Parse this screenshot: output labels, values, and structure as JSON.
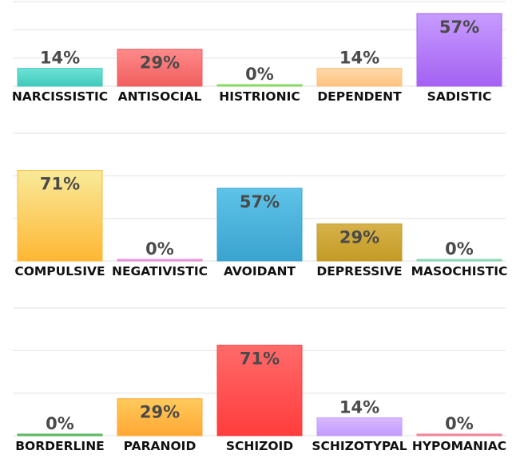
{
  "chart_data": [
    {
      "type": "bar",
      "categories": [
        "NARCISSISTIC",
        "ANTISOCIAL",
        "HISTRIONIC",
        "DEPENDENT",
        "SADISTIC"
      ],
      "values": [
        14,
        29,
        0,
        14,
        57
      ],
      "value_labels": [
        "14%",
        "29%",
        "0%",
        "14%",
        "57%"
      ],
      "colors": [
        [
          "#6fe3d6",
          "#3fc9bb"
        ],
        [
          "#ff8a8a",
          "#f05e5e"
        ],
        [
          "#aef08c",
          "#7ed65a"
        ],
        [
          "#ffd9a8",
          "#ffc27f"
        ],
        [
          "#c79cff",
          "#a461f2"
        ]
      ],
      "ylim": [
        0,
        70
      ],
      "grid": true
    },
    {
      "type": "bar",
      "categories": [
        "COMPULSIVE",
        "NEGATIVISTIC",
        "AVOIDANT",
        "DEPRESSIVE",
        "MASOCHISTIC"
      ],
      "values": [
        71,
        0,
        57,
        29,
        0
      ],
      "value_labels": [
        "71%",
        "0%",
        "57%",
        "29%",
        "0%"
      ],
      "colors": [
        [
          "#f8ea9a",
          "#ffb733"
        ],
        [
          "#f3b8e8",
          "#e58ad6"
        ],
        [
          "#5ec3e8",
          "#3aa3cf"
        ],
        [
          "#d6b24a",
          "#c49a25"
        ],
        [
          "#a6e8c8",
          "#7fd3ad"
        ]
      ],
      "ylim": [
        0,
        70
      ],
      "grid": true
    },
    {
      "type": "bar",
      "categories": [
        "BORDERLINE",
        "PARANOID",
        "SCHIZOID",
        "SCHIZOTYPAL",
        "HYPOMANIAC"
      ],
      "values": [
        0,
        29,
        71,
        14,
        0
      ],
      "value_labels": [
        "0%",
        "29%",
        "71%",
        "14%",
        "0%"
      ],
      "colors": [
        [
          "#8fdc8f",
          "#4caf50"
        ],
        [
          "#ffca5c",
          "#ffa733"
        ],
        [
          "#ff6a6a",
          "#ff3c3c"
        ],
        [
          "#d9b8ff",
          "#c39bff"
        ],
        [
          "#ff9fb0",
          "#f07a92"
        ]
      ],
      "ylim": [
        0,
        70
      ],
      "grid": true
    }
  ]
}
